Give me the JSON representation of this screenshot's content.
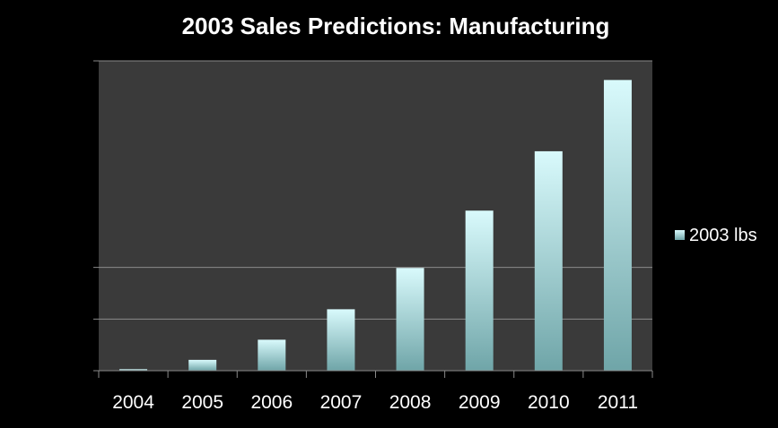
{
  "chart_data": {
    "type": "bar",
    "title": "2003 Sales Predictions: Manufacturing",
    "xlabel": "",
    "ylabel": "",
    "categories": [
      "2004",
      "2005",
      "2006",
      "2007",
      "2008",
      "2009",
      "2010",
      "2011"
    ],
    "series": [
      {
        "name": "2003 lbs",
        "values": [
          0.3,
          2.1,
          6.0,
          11.9,
          19.9,
          31.0,
          42.5,
          56.3
        ]
      }
    ],
    "ylim": [
      0,
      60
    ],
    "y_gridlines": [
      0,
      10,
      20,
      60
    ],
    "y_tick_labels_shown": false,
    "legend_position": "right",
    "grid": true
  },
  "colors": {
    "background": "#000000",
    "plot_area": "#3a3a3a",
    "bar_top": "#d9fafc",
    "bar_bottom": "#6fa5a8",
    "gridline": "#8a8a8a",
    "text": "#ffffff"
  }
}
